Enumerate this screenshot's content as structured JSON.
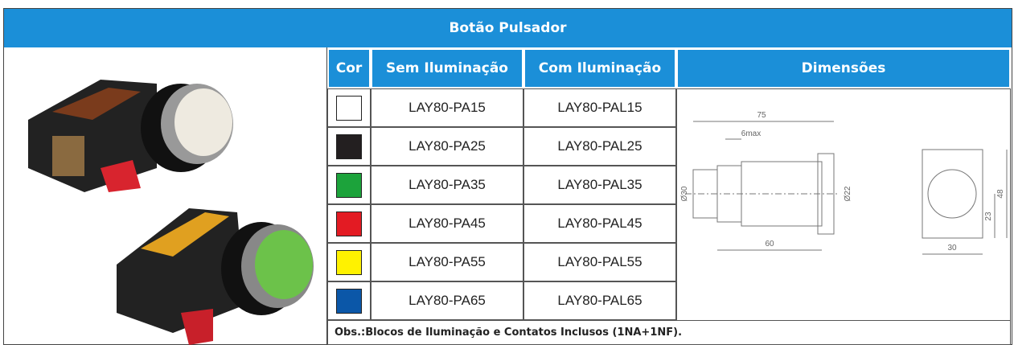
{
  "header": {
    "title": "Botão Pulsador"
  },
  "table": {
    "columns": [
      "Cor",
      "Sem Iluminação",
      "Com Iluminação",
      "Dimensões"
    ],
    "rows": [
      {
        "color": "#ffffff",
        "sem": "LAY80-PA15",
        "com": "LAY80-PAL15"
      },
      {
        "color": "#231f20",
        "sem": "LAY80-PA25",
        "com": "LAY80-PAL25"
      },
      {
        "color": "#1ca33b",
        "sem": "LAY80-PA35",
        "com": "LAY80-PAL35"
      },
      {
        "color": "#e31b23",
        "sem": "LAY80-PA45",
        "com": "LAY80-PAL45"
      },
      {
        "color": "#fff200",
        "sem": "LAY80-PA55",
        "com": "LAY80-PAL55"
      },
      {
        "color": "#0b57a8",
        "sem": "LAY80-PA65",
        "com": "LAY80-PAL65"
      }
    ],
    "note": "Obs.:Blocos de Iluminação e Contatos Inclusos (1NA+1NF)."
  },
  "dimensions": {
    "labels": [
      "75",
      "6max",
      "Ø30",
      "Ø22",
      "60",
      "48",
      "23",
      "30"
    ]
  }
}
